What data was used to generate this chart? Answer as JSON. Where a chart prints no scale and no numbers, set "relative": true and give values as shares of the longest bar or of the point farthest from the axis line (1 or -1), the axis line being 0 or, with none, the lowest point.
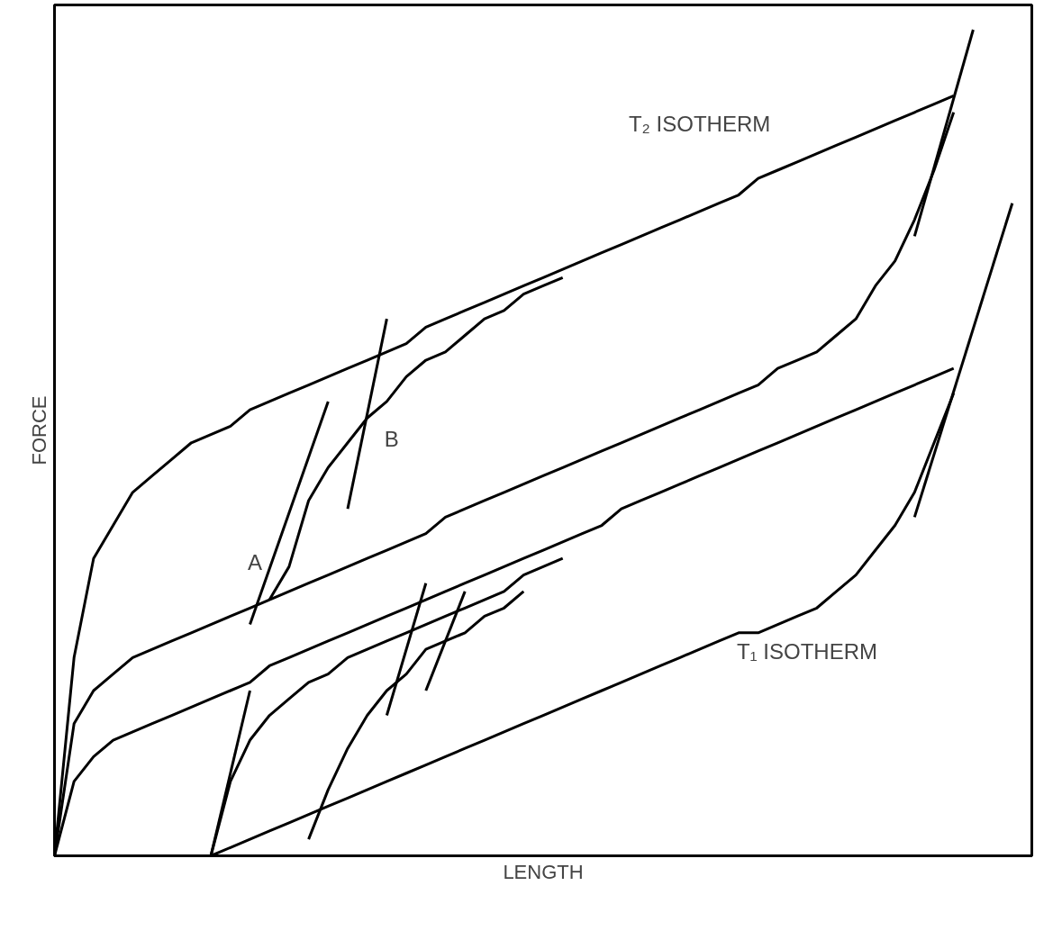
{
  "chart_data": {
    "type": "line",
    "relative": true,
    "xlabel": "LENGTH",
    "ylabel": "FORCE",
    "marker": "none",
    "line_style": "solid",
    "categories": [
      null,
      null,
      null,
      null,
      null,
      null,
      null,
      null,
      null,
      null,
      null,
      null,
      null,
      null,
      null,
      null,
      null,
      null,
      null,
      null,
      null,
      null,
      null,
      null,
      null,
      null,
      null,
      null,
      null,
      null,
      null,
      null,
      null,
      null,
      null,
      null,
      null,
      null,
      null,
      null,
      null,
      null,
      null,
      null,
      null,
      null,
      null,
      null,
      null,
      null,
      null
    ],
    "series": [
      {
        "color": "#000000",
        "values": [
          0,
          0.24,
          0.36,
          0.4,
          0.44,
          0.46,
          0.48,
          0.5,
          0.51,
          0.52,
          0.54,
          0.55,
          0.56,
          0.57,
          0.58,
          0.59,
          0.6,
          0.61,
          0.62,
          0.64,
          0.65,
          0.66,
          0.67,
          0.68,
          0.69,
          0.7,
          0.71,
          0.72,
          0.73,
          0.74,
          0.75,
          0.76,
          0.77,
          0.78,
          0.79,
          0.8,
          0.82,
          0.83,
          0.84,
          0.85,
          0.86,
          0.87,
          0.88,
          0.89,
          0.9,
          0.91,
          0.92,
          null,
          null,
          null,
          null
        ]
      },
      {
        "color": "#000000",
        "values": [
          0,
          0.16,
          0.2,
          0.22,
          0.24,
          0.25,
          0.26,
          0.27,
          0.28,
          0.29,
          0.3,
          0.31,
          0.32,
          0.33,
          0.34,
          0.35,
          0.36,
          0.37,
          0.38,
          0.39,
          0.41,
          0.42,
          0.43,
          0.44,
          0.45,
          0.46,
          0.47,
          0.48,
          0.49,
          0.5,
          0.51,
          0.52,
          0.53,
          0.54,
          0.55,
          0.56,
          0.57,
          0.59,
          0.6,
          0.61,
          0.63,
          0.65,
          0.69,
          0.72,
          0.77,
          0.83,
          0.9,
          null,
          null,
          null,
          null
        ]
      },
      {
        "color": "#000000",
        "values": [
          0,
          0.09,
          0.12,
          0.14,
          0.15,
          0.16,
          0.17,
          0.18,
          0.19,
          0.2,
          0.21,
          0.23,
          0.24,
          0.25,
          0.26,
          0.27,
          0.28,
          0.29,
          0.3,
          0.31,
          0.32,
          0.33,
          0.34,
          0.35,
          0.36,
          0.37,
          0.38,
          0.39,
          0.4,
          0.42,
          0.43,
          0.44,
          0.45,
          0.46,
          0.47,
          0.48,
          0.49,
          0.5,
          0.51,
          0.52,
          0.53,
          0.54,
          0.55,
          0.56,
          0.57,
          0.58,
          0.59,
          null,
          null,
          null,
          null
        ]
      },
      {
        "color": "#000000",
        "values": [
          null,
          null,
          null,
          null,
          null,
          null,
          null,
          null,
          0,
          0.01,
          0.02,
          0.03,
          0.04,
          0.05,
          0.06,
          0.07,
          0.08,
          0.09,
          0.1,
          0.11,
          0.12,
          0.13,
          0.14,
          0.15,
          0.16,
          0.17,
          0.18,
          0.19,
          0.2,
          0.21,
          0.22,
          0.23,
          0.24,
          0.25,
          0.26,
          0.27,
          0.27,
          0.28,
          0.29,
          0.3,
          0.32,
          0.34,
          0.37,
          0.4,
          0.44,
          0.5,
          0.56,
          null,
          null,
          null,
          null
        ]
      },
      {
        "color": "#000000",
        "values": [
          null,
          null,
          null,
          null,
          null,
          null,
          null,
          null,
          null,
          null,
          null,
          0.31,
          0.35,
          0.43,
          0.47,
          0.5,
          0.53,
          0.55,
          0.58,
          0.6,
          0.61,
          0.63,
          0.65,
          0.66,
          0.68,
          0.69,
          0.7,
          null,
          null,
          null,
          null,
          null,
          null,
          null,
          null,
          null,
          null,
          null,
          null,
          null,
          null,
          null,
          null,
          null,
          null,
          null,
          null,
          null,
          null,
          null,
          null
        ]
      },
      {
        "color": "#000000",
        "values": [
          null,
          null,
          null,
          null,
          null,
          null,
          null,
          null,
          0,
          0.09,
          0.14,
          0.17,
          0.19,
          0.21,
          0.22,
          0.24,
          0.25,
          0.26,
          0.27,
          0.28,
          0.29,
          0.3,
          0.31,
          0.32,
          0.34,
          0.35,
          0.36,
          null,
          null,
          null,
          null,
          null,
          null,
          null,
          null,
          null,
          null,
          null,
          null,
          null,
          null,
          null,
          null,
          null,
          null,
          null,
          null,
          null,
          null,
          null,
          null
        ]
      },
      {
        "color": "#000000",
        "values": [
          null,
          null,
          null,
          null,
          null,
          null,
          null,
          null,
          null,
          null,
          null,
          null,
          null,
          0.02,
          0.08,
          0.13,
          0.17,
          0.2,
          0.22,
          0.25,
          0.26,
          0.27,
          0.29,
          0.3,
          0.32,
          null,
          null,
          null,
          null,
          null,
          null,
          null,
          null,
          null,
          null,
          null,
          null,
          null,
          null,
          null,
          null,
          null,
          null,
          null,
          null,
          null,
          null,
          null,
          null,
          null,
          null
        ]
      },
      {
        "color": "#000000",
        "values": [
          null,
          null,
          null,
          null,
          null,
          null,
          null,
          null,
          null,
          null,
          0.28,
          null,
          null,
          null,
          0.55,
          null,
          null,
          null,
          null,
          null,
          null,
          null,
          null,
          null,
          null,
          null,
          null,
          null,
          null,
          null,
          null,
          null,
          null,
          null,
          null,
          null,
          null,
          null,
          null,
          null,
          null,
          null,
          null,
          null,
          null,
          null,
          null,
          null,
          null,
          null,
          null
        ]
      },
      {
        "color": "#000000",
        "values": [
          null,
          null,
          null,
          null,
          null,
          null,
          null,
          null,
          null,
          null,
          null,
          null,
          null,
          null,
          null,
          0.42,
          null,
          0.65,
          null,
          null,
          null,
          null,
          null,
          null,
          null,
          null,
          null,
          null,
          null,
          null,
          null,
          null,
          null,
          null,
          null,
          null,
          null,
          null,
          null,
          null,
          null,
          null,
          null,
          null,
          null,
          null,
          null,
          null,
          null,
          null,
          null
        ]
      },
      {
        "color": "#000000",
        "values": [
          null,
          null,
          null,
          null,
          null,
          null,
          null,
          null,
          0,
          null,
          0.2,
          null,
          null,
          null,
          null,
          null,
          null,
          null,
          null,
          null,
          null,
          null,
          null,
          null,
          null,
          null,
          null,
          null,
          null,
          null,
          null,
          null,
          null,
          null,
          null,
          null,
          null,
          null,
          null,
          null,
          null,
          null,
          null,
          null,
          null,
          null,
          null,
          null,
          null,
          null,
          null
        ]
      },
      {
        "color": "#000000",
        "values": [
          null,
          null,
          null,
          null,
          null,
          null,
          null,
          null,
          null,
          null,
          null,
          null,
          null,
          null,
          null,
          null,
          null,
          null,
          null,
          null,
          null,
          null,
          null,
          null,
          null,
          null,
          null,
          null,
          null,
          null,
          null,
          null,
          null,
          null,
          null,
          null,
          null,
          null,
          null,
          null,
          null,
          null,
          null,
          null,
          0.75,
          null,
          null,
          1.0,
          null,
          null,
          null
        ]
      },
      {
        "color": "#000000",
        "values": [
          null,
          null,
          null,
          null,
          null,
          null,
          null,
          null,
          null,
          null,
          null,
          null,
          null,
          null,
          null,
          null,
          null,
          null,
          null,
          null,
          null,
          null,
          null,
          null,
          null,
          null,
          null,
          null,
          null,
          null,
          null,
          null,
          null,
          null,
          null,
          null,
          null,
          null,
          null,
          null,
          null,
          null,
          null,
          null,
          0.41,
          null,
          null,
          null,
          null,
          0.79,
          null
        ]
      },
      {
        "color": "#000000",
        "values": [
          null,
          null,
          null,
          null,
          null,
          null,
          null,
          null,
          null,
          null,
          null,
          null,
          null,
          null,
          null,
          null,
          null,
          0.17,
          null,
          0.33,
          null,
          null,
          null,
          null,
          null,
          null,
          null,
          null,
          null,
          null,
          null,
          null,
          null,
          null,
          null,
          null,
          null,
          null,
          null,
          null,
          null,
          null,
          null,
          null,
          null,
          null,
          null,
          null,
          null,
          null,
          null
        ]
      },
      {
        "color": "#000000",
        "values": [
          null,
          null,
          null,
          null,
          null,
          null,
          null,
          null,
          null,
          null,
          null,
          null,
          null,
          null,
          null,
          null,
          null,
          null,
          null,
          0.2,
          null,
          0.32,
          null,
          null,
          null,
          null,
          null,
          null,
          null,
          null,
          null,
          null,
          null,
          null,
          null,
          null,
          null,
          null,
          null,
          null,
          null,
          null,
          null,
          null,
          null,
          null,
          null,
          null,
          null,
          null,
          null
        ]
      }
    ],
    "annotations": [
      "T₂ ISOTHERM",
      "T₁ ISOTHERM",
      "A",
      "B"
    ]
  }
}
